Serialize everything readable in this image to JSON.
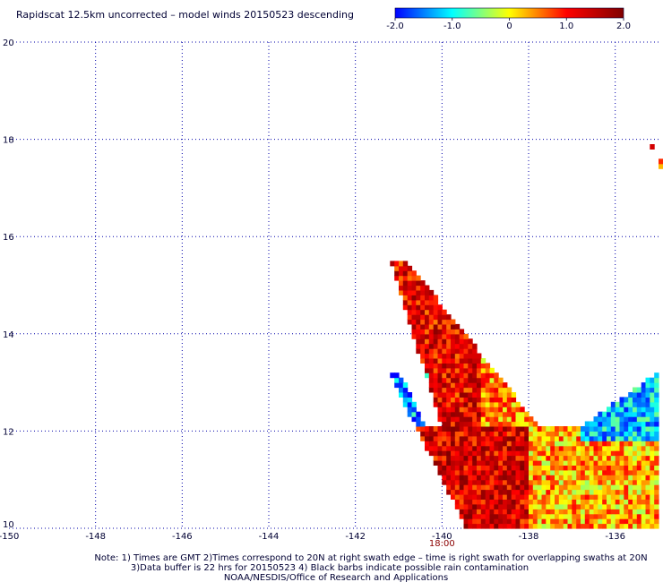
{
  "chart_data": {
    "type": "heatmap",
    "title": "Rapidscat 12.5km uncorrected – model winds 20150523 descending",
    "xlim": [
      -150,
      -135
    ],
    "ylim": [
      10,
      20
    ],
    "x_ticks": [
      -150,
      -148,
      -146,
      -144,
      -142,
      -140,
      -138,
      -136
    ],
    "x_tick_labels": [
      "-150",
      "-148",
      "-146",
      "-144",
      "-142",
      "-140",
      "-138",
      "-136"
    ],
    "y_ticks": [
      10,
      12,
      14,
      16,
      18,
      20
    ],
    "y_tick_labels": [
      "10",
      "12",
      "14",
      "16",
      "18",
      "20"
    ],
    "grid": true,
    "colorbar": {
      "range": [
        -2.0,
        2.0
      ],
      "tick_values": [
        -2.0,
        -1.0,
        0,
        1.0,
        2.0
      ],
      "tick_labels": [
        "-2.0",
        "-1.0",
        "0",
        "1.0",
        "2.0"
      ],
      "colors": [
        "#0000ff",
        "#00ffff",
        "#ffff00",
        "#ff0000",
        "#800000"
      ]
    },
    "time_label": "18:00",
    "time_label_lon": -140.0,
    "swath_regions": [
      {
        "region": "upper-left arm",
        "lon_range": [
          -141.3,
          -139.1
        ],
        "lat_range": [
          12.0,
          15.5
        ],
        "mean_diff": 1.2
      },
      {
        "region": "left blue edge",
        "lon_range": [
          -141.2,
          -140.3
        ],
        "lat_range": [
          11.9,
          13.2
        ],
        "mean_diff": -1.4
      },
      {
        "region": "swath center",
        "lon_range": [
          -140.6,
          -137.5
        ],
        "lat_range": [
          10.0,
          12.1
        ],
        "mean_diff": 1.3
      },
      {
        "region": "swath right body",
        "lon_range": [
          -138.0,
          -135.0
        ],
        "lat_range": [
          10.0,
          12.1
        ],
        "mean_diff": 0.3
      },
      {
        "region": "right blue edge",
        "lon_range": [
          -136.8,
          -135.0
        ],
        "lat_range": [
          11.8,
          13.2
        ],
        "mean_diff": -1.2
      },
      {
        "region": "isolated pixels",
        "lon_range": [
          -135.2,
          -135.0
        ],
        "lat_range": [
          17.5,
          18.0
        ],
        "mean_diff": 0.9
      }
    ]
  },
  "notes": {
    "line1": "Note: 1) Times are GMT 2)Times correspond to 20N at right swath edge – time is right swath for overlapping swaths at 20N",
    "line2": "3)Data buffer is 22 hrs for 20150523 4) Black barbs indicate possible rain contamination",
    "line3": "NOAA/NESDIS/Office of Research and Applications"
  }
}
